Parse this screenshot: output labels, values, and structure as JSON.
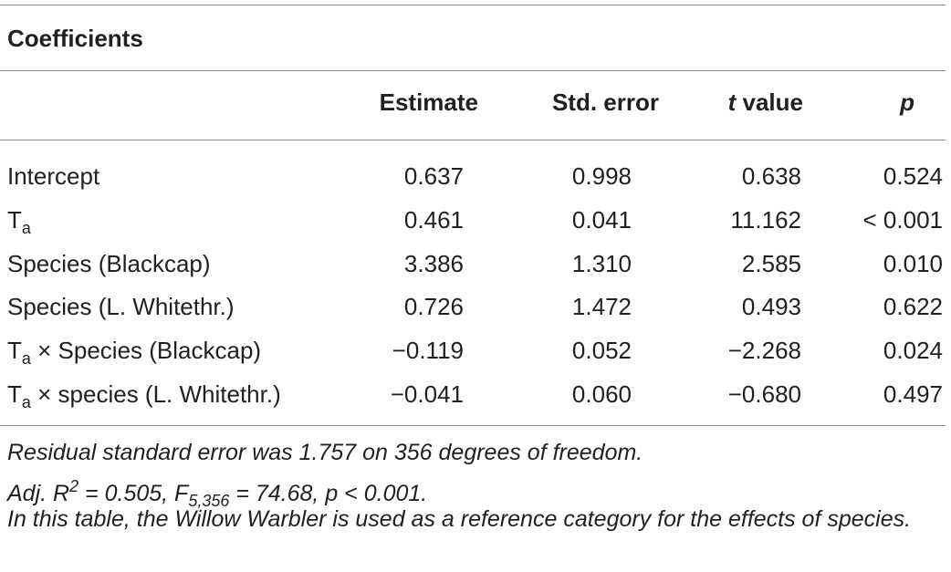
{
  "table": {
    "title": "Coefficients",
    "columns": [
      "Estimate",
      "Std. error",
      [
        {
          "t": "t",
          "style": "i"
        },
        {
          "t": " value"
        }
      ],
      [
        {
          "t": "p",
          "style": "i"
        }
      ]
    ],
    "rows": [
      [
        [
          "Intercept"
        ],
        "0.637",
        "0.998",
        "0.638",
        "0.524"
      ],
      [
        [
          {
            "t": "T"
          },
          {
            "t": "a",
            "style": "sub"
          }
        ],
        "0.461",
        "0.041",
        "11.162",
        "< 0.001"
      ],
      [
        [
          "Species (Blackcap)"
        ],
        "3.386",
        "1.310",
        "2.585",
        "0.010"
      ],
      [
        [
          "Species (L. Whitethr.)"
        ],
        "0.726",
        "1.472",
        "0.493",
        "0.622"
      ],
      [
        [
          {
            "t": "T"
          },
          {
            "t": "a",
            "style": "sub"
          },
          {
            "t": " × Species (Blackcap)"
          }
        ],
        "−0.119",
        "0.052",
        "−2.268",
        "0.024"
      ],
      [
        [
          {
            "t": "T"
          },
          {
            "t": "a",
            "style": "sub"
          },
          {
            "t": " × species (L. Whitethr.)"
          }
        ],
        "−0.041",
        "0.060",
        "−0.680",
        "0.497"
      ]
    ],
    "notes": [
      [
        {
          "t": "Residual standard error was 1.757 on 356 degrees of freedom."
        }
      ],
      [
        {
          "t": "Adj. R"
        },
        {
          "t": "2",
          "style": "sup"
        },
        {
          "t": " = 0.505, F"
        },
        {
          "t": "5,356",
          "style": "sub"
        },
        {
          "t": " = 74.68, p < 0.001."
        }
      ],
      [
        {
          "t": "In this table, the Willow Warbler is used as a reference category for the effects of species."
        }
      ]
    ]
  }
}
